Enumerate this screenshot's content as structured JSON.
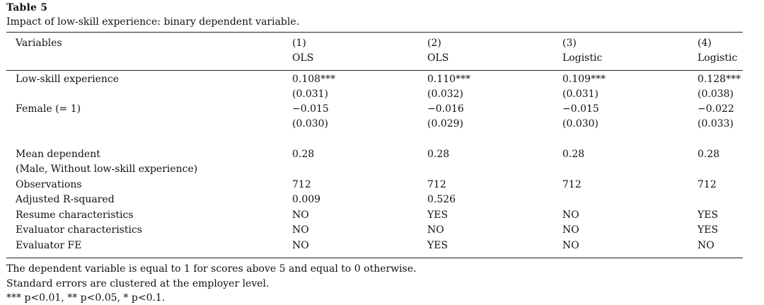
{
  "table": {
    "title": "Table 5",
    "caption": "Impact of low-skill experience: binary dependent variable.",
    "header": {
      "variables_label": "Variables",
      "columns": [
        {
          "num": "(1)",
          "method": "OLS"
        },
        {
          "num": "(2)",
          "method": "OLS"
        },
        {
          "num": "(3)",
          "method": "Logistic"
        },
        {
          "num": "(4)",
          "method": "Logistic"
        }
      ]
    },
    "rows": [
      {
        "label": "Low-skill experience",
        "values": [
          "0.108***",
          "0.110***",
          "0.109***",
          "0.128***"
        ]
      },
      {
        "label": "",
        "values": [
          "(0.031)",
          "(0.032)",
          "(0.031)",
          "(0.038)"
        ]
      },
      {
        "label": "Female (= 1)",
        "values": [
          "−0.015",
          "−0.016",
          "−0.015",
          "−0.022"
        ]
      },
      {
        "label": "",
        "values": [
          "(0.030)",
          "(0.029)",
          "(0.030)",
          "(0.033)"
        ]
      },
      {
        "label": "Mean dependent",
        "values": [
          "0.28",
          "0.28",
          "0.28",
          "0.28"
        ]
      },
      {
        "label": "(Male, Without low-skill experience)",
        "values": [
          "",
          "",
          "",
          ""
        ]
      },
      {
        "label": "Observations",
        "values": [
          "712",
          "712",
          "712",
          "712"
        ]
      },
      {
        "label": "Adjusted R-squared",
        "values": [
          "0.009",
          "0.526",
          "",
          ""
        ]
      },
      {
        "label": "Resume characteristics",
        "values": [
          "NO",
          "YES",
          "NO",
          "YES"
        ]
      },
      {
        "label": "Evaluator characteristics",
        "values": [
          "NO",
          "NO",
          "NO",
          "YES"
        ]
      },
      {
        "label": "Evaluator FE",
        "values": [
          "NO",
          "YES",
          "NO",
          "NO"
        ]
      }
    ],
    "notes": [
      "The dependent variable is equal to 1 for scores above 5 and equal to 0 otherwise.",
      "Standard errors are clustered at the employer level.",
      "*** p<0.01, ** p<0.05, * p<0.1."
    ]
  }
}
